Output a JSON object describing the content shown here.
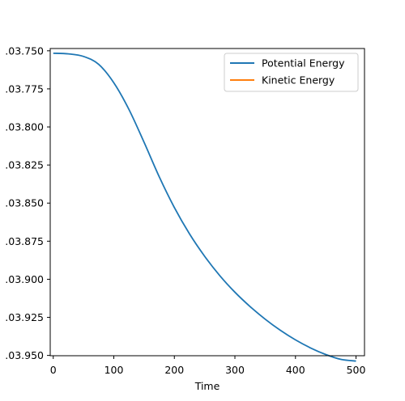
{
  "chart_data": {
    "type": "line",
    "title": "",
    "xlabel": "Time",
    "ylabel": "",
    "xlim": [
      -5,
      514
    ],
    "ylim": [
      -103.9502,
      -103.7485
    ],
    "xticks": [
      0,
      100,
      200,
      300,
      400,
      500
    ],
    "xtick_labels": [
      "0",
      "100",
      "200",
      "300",
      "400",
      "500"
    ],
    "yticks": [
      -103.75,
      -103.775,
      -103.8,
      -103.825,
      -103.85,
      -103.875,
      -103.9,
      -103.925,
      -103.95
    ],
    "ytick_labels": [
      ".03.750",
      ".03.775",
      ".03.800",
      ".03.825",
      ".03.850",
      ".03.875",
      ".03.900",
      ".03.925",
      ".03.950"
    ],
    "grid": false,
    "legend_position": "upper right",
    "series": [
      {
        "name": "Potential Energy",
        "color": "#1f77b4",
        "x": [
          0,
          25,
          50,
          75,
          100,
          125,
          150,
          175,
          200,
          225,
          250,
          275,
          300,
          325,
          350,
          375,
          400,
          425,
          450,
          475,
          500
        ],
        "y": [
          -103.7516,
          -103.752,
          -103.7537,
          -103.7589,
          -103.771,
          -103.7885,
          -103.8101,
          -103.8327,
          -103.8529,
          -103.8702,
          -103.8849,
          -103.8976,
          -103.9085,
          -103.9179,
          -103.9262,
          -103.9335,
          -103.9398,
          -103.9451,
          -103.9494,
          -103.9526,
          -103.9537
        ]
      },
      {
        "name": "Kinetic Energy",
        "color": "#ff7f0e",
        "x": [],
        "y": []
      }
    ]
  }
}
